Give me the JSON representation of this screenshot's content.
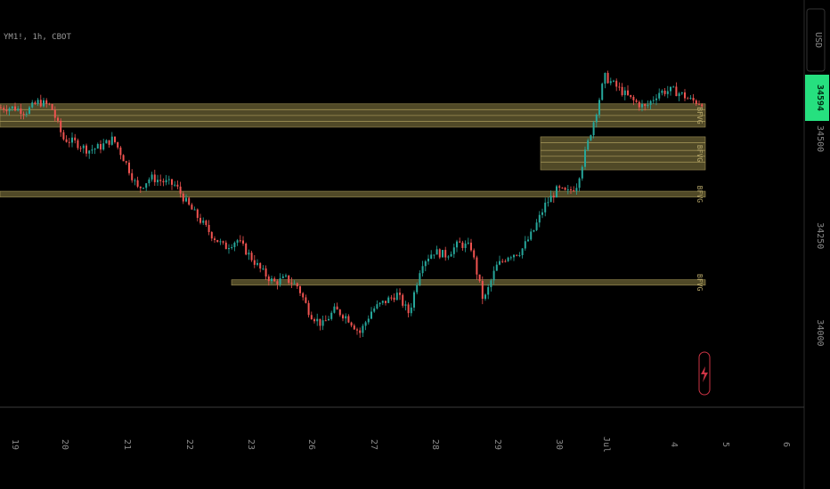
{
  "chart_data": {
    "type": "candlestick",
    "symbol_label": "YM1!, 1h, CBOT",
    "currency": "USD",
    "last_price": "34594",
    "colors": {
      "up": "#26a69a",
      "down": "#ef5350",
      "fvg_fill": "#6b6134",
      "fvg_line": "#9e9055",
      "last_price_bg": "#26e07f",
      "background": "#000000",
      "axis_line": "#3a3a3a"
    },
    "y_ticks": [
      "34500",
      "34250",
      "34000"
    ],
    "x_ticks": [
      "19",
      "20",
      "21",
      "22",
      "23",
      "26",
      "27",
      "28",
      "29",
      "30",
      "Jul",
      "4",
      "5",
      "6"
    ],
    "ylim": [
      33850,
      34720
    ],
    "fvg_zones": [
      {
        "label": "BFVG",
        "y0": 34530,
        "y1": 34590,
        "x0_tick": "19",
        "x1_tick": "4",
        "lines": [
          34545,
          34560,
          34575
        ]
      },
      {
        "label": "BFVG",
        "y0": 34420,
        "y1": 34505,
        "x0_tick": "29",
        "x1_tick": "4",
        "lines": [
          34440,
          34455,
          34470,
          34490
        ]
      },
      {
        "label": "BFVG",
        "y0": 34350,
        "y1": 34365,
        "x0_tick": "19",
        "x1_tick": "4",
        "lines": []
      },
      {
        "label": "BFVG",
        "y0": 34123,
        "y1": 34137,
        "x0_tick": "23",
        "x1_tick": "4",
        "lines": []
      }
    ],
    "close_path": [
      [
        "19",
        34580
      ],
      [
        "19",
        34570
      ],
      [
        "19",
        34595
      ],
      [
        "19",
        34585
      ],
      [
        "20",
        34500
      ],
      [
        "20",
        34490
      ],
      [
        "20",
        34470
      ],
      [
        "20",
        34480
      ],
      [
        "20",
        34500
      ],
      [
        "21",
        34440
      ],
      [
        "21",
        34370
      ],
      [
        "21",
        34400
      ],
      [
        "21",
        34390
      ],
      [
        "21",
        34380
      ],
      [
        "22",
        34330
      ],
      [
        "22",
        34290
      ],
      [
        "22",
        34250
      ],
      [
        "22",
        34220
      ],
      [
        "22",
        34240
      ],
      [
        "23",
        34200
      ],
      [
        "23",
        34160
      ],
      [
        "23",
        34130
      ],
      [
        "23",
        34140
      ],
      [
        "23",
        34120
      ],
      [
        "26",
        34050
      ],
      [
        "26",
        34020
      ],
      [
        "26",
        34060
      ],
      [
        "26",
        34040
      ],
      [
        "26",
        34000
      ],
      [
        "27",
        34060
      ],
      [
        "27",
        34080
      ],
      [
        "27",
        34100
      ],
      [
        "27",
        34050
      ],
      [
        "27",
        34180
      ],
      [
        "28",
        34210
      ],
      [
        "28",
        34200
      ],
      [
        "28",
        34230
      ],
      [
        "28",
        34220
      ],
      [
        "28",
        34080
      ],
      [
        "29",
        34170
      ],
      [
        "29",
        34200
      ],
      [
        "29",
        34210
      ],
      [
        "29",
        34260
      ],
      [
        "29",
        34330
      ],
      [
        "30",
        34370
      ],
      [
        "30",
        34360
      ],
      [
        "30",
        34380
      ],
      [
        "30",
        34470
      ],
      [
        "30",
        34560
      ],
      [
        "Jul",
        34660
      ],
      [
        "Jul",
        34630
      ],
      [
        "Jul",
        34600
      ],
      [
        "Jul",
        34580
      ],
      [
        "Jul",
        34620
      ],
      [
        "4",
        34625
      ],
      [
        "4",
        34615
      ],
      [
        "4",
        34600
      ],
      [
        "4",
        34594
      ]
    ]
  }
}
